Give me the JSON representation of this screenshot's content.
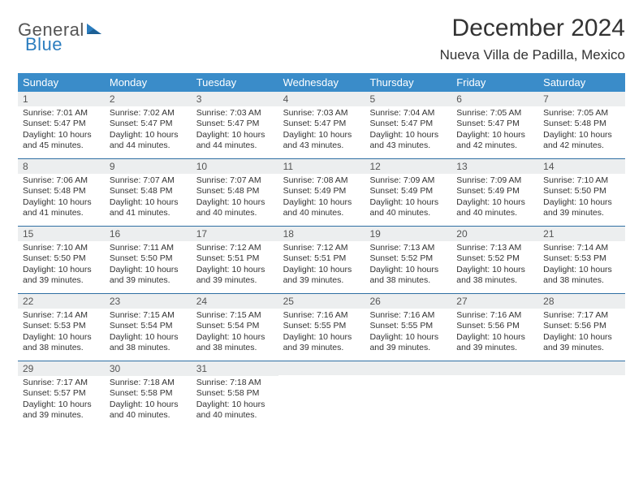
{
  "brand": {
    "word1": "General",
    "word2": "Blue",
    "accent_color": "#2b7dbf",
    "text_color": "#555555"
  },
  "title": "December 2024",
  "location": "Nueva Villa de Padilla, Mexico",
  "colors": {
    "header_bg": "#3a8cc9",
    "header_text": "#ffffff",
    "daynum_bg": "#eceeef",
    "daynum_text": "#555555",
    "row_border": "#2f6fa3",
    "body_text": "#333333"
  },
  "day_headers": [
    "Sunday",
    "Monday",
    "Tuesday",
    "Wednesday",
    "Thursday",
    "Friday",
    "Saturday"
  ],
  "weeks": [
    [
      {
        "n": "1",
        "sr": "7:01 AM",
        "ss": "5:47 PM",
        "dl": "10 hours and 45 minutes."
      },
      {
        "n": "2",
        "sr": "7:02 AM",
        "ss": "5:47 PM",
        "dl": "10 hours and 44 minutes."
      },
      {
        "n": "3",
        "sr": "7:03 AM",
        "ss": "5:47 PM",
        "dl": "10 hours and 44 minutes."
      },
      {
        "n": "4",
        "sr": "7:03 AM",
        "ss": "5:47 PM",
        "dl": "10 hours and 43 minutes."
      },
      {
        "n": "5",
        "sr": "7:04 AM",
        "ss": "5:47 PM",
        "dl": "10 hours and 43 minutes."
      },
      {
        "n": "6",
        "sr": "7:05 AM",
        "ss": "5:47 PM",
        "dl": "10 hours and 42 minutes."
      },
      {
        "n": "7",
        "sr": "7:05 AM",
        "ss": "5:48 PM",
        "dl": "10 hours and 42 minutes."
      }
    ],
    [
      {
        "n": "8",
        "sr": "7:06 AM",
        "ss": "5:48 PM",
        "dl": "10 hours and 41 minutes."
      },
      {
        "n": "9",
        "sr": "7:07 AM",
        "ss": "5:48 PM",
        "dl": "10 hours and 41 minutes."
      },
      {
        "n": "10",
        "sr": "7:07 AM",
        "ss": "5:48 PM",
        "dl": "10 hours and 40 minutes."
      },
      {
        "n": "11",
        "sr": "7:08 AM",
        "ss": "5:49 PM",
        "dl": "10 hours and 40 minutes."
      },
      {
        "n": "12",
        "sr": "7:09 AM",
        "ss": "5:49 PM",
        "dl": "10 hours and 40 minutes."
      },
      {
        "n": "13",
        "sr": "7:09 AM",
        "ss": "5:49 PM",
        "dl": "10 hours and 40 minutes."
      },
      {
        "n": "14",
        "sr": "7:10 AM",
        "ss": "5:50 PM",
        "dl": "10 hours and 39 minutes."
      }
    ],
    [
      {
        "n": "15",
        "sr": "7:10 AM",
        "ss": "5:50 PM",
        "dl": "10 hours and 39 minutes."
      },
      {
        "n": "16",
        "sr": "7:11 AM",
        "ss": "5:50 PM",
        "dl": "10 hours and 39 minutes."
      },
      {
        "n": "17",
        "sr": "7:12 AM",
        "ss": "5:51 PM",
        "dl": "10 hours and 39 minutes."
      },
      {
        "n": "18",
        "sr": "7:12 AM",
        "ss": "5:51 PM",
        "dl": "10 hours and 39 minutes."
      },
      {
        "n": "19",
        "sr": "7:13 AM",
        "ss": "5:52 PM",
        "dl": "10 hours and 38 minutes."
      },
      {
        "n": "20",
        "sr": "7:13 AM",
        "ss": "5:52 PM",
        "dl": "10 hours and 38 minutes."
      },
      {
        "n": "21",
        "sr": "7:14 AM",
        "ss": "5:53 PM",
        "dl": "10 hours and 38 minutes."
      }
    ],
    [
      {
        "n": "22",
        "sr": "7:14 AM",
        "ss": "5:53 PM",
        "dl": "10 hours and 38 minutes."
      },
      {
        "n": "23",
        "sr": "7:15 AM",
        "ss": "5:54 PM",
        "dl": "10 hours and 38 minutes."
      },
      {
        "n": "24",
        "sr": "7:15 AM",
        "ss": "5:54 PM",
        "dl": "10 hours and 38 minutes."
      },
      {
        "n": "25",
        "sr": "7:16 AM",
        "ss": "5:55 PM",
        "dl": "10 hours and 39 minutes."
      },
      {
        "n": "26",
        "sr": "7:16 AM",
        "ss": "5:55 PM",
        "dl": "10 hours and 39 minutes."
      },
      {
        "n": "27",
        "sr": "7:16 AM",
        "ss": "5:56 PM",
        "dl": "10 hours and 39 minutes."
      },
      {
        "n": "28",
        "sr": "7:17 AM",
        "ss": "5:56 PM",
        "dl": "10 hours and 39 minutes."
      }
    ],
    [
      {
        "n": "29",
        "sr": "7:17 AM",
        "ss": "5:57 PM",
        "dl": "10 hours and 39 minutes."
      },
      {
        "n": "30",
        "sr": "7:18 AM",
        "ss": "5:58 PM",
        "dl": "10 hours and 40 minutes."
      },
      {
        "n": "31",
        "sr": "7:18 AM",
        "ss": "5:58 PM",
        "dl": "10 hours and 40 minutes."
      },
      null,
      null,
      null,
      null
    ]
  ],
  "labels": {
    "sunrise": "Sunrise: ",
    "sunset": "Sunset: ",
    "daylight": "Daylight: "
  }
}
